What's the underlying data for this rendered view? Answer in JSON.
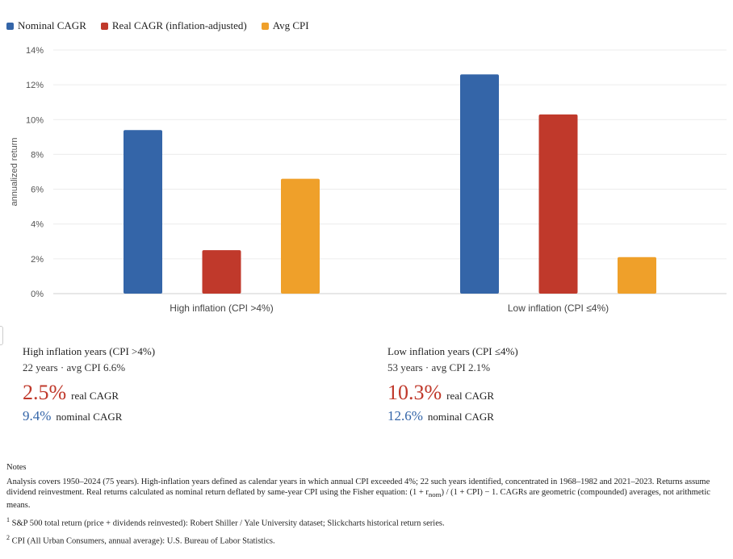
{
  "legend": [
    {
      "label": "Nominal CAGR",
      "color": "#3465a8"
    },
    {
      "label": "Real CAGR (inflation-adjusted)",
      "color": "#c0392b"
    },
    {
      "label": "Avg CPI",
      "color": "#efa02a"
    }
  ],
  "chart_data": {
    "type": "bar",
    "categories": [
      "High inflation (CPI >4%)",
      "Low inflation (CPI ≤4%)"
    ],
    "series": [
      {
        "name": "Nominal CAGR",
        "values": [
          9.4,
          12.6
        ],
        "color": "#3465a8"
      },
      {
        "name": "Real CAGR (inflation-adjusted)",
        "values": [
          2.5,
          10.3
        ],
        "color": "#c0392b"
      },
      {
        "name": "Avg CPI",
        "values": [
          6.6,
          2.1
        ],
        "color": "#efa02a"
      }
    ],
    "ylabel": "annualized return",
    "ylim": [
      0,
      14
    ],
    "yticks": [
      "0%",
      "2%",
      "4%",
      "6%",
      "8%",
      "10%",
      "12%",
      "14%"
    ],
    "grid": true,
    "legend_position": "top-left"
  },
  "cards": [
    {
      "title": "High inflation years (CPI >4%)",
      "sub": "22 years · avg CPI 6.6%",
      "real": "2.5%",
      "real_label": "real CAGR",
      "nominal": "9.4%",
      "nominal_label": "nominal CAGR"
    },
    {
      "title": "Low inflation years (CPI ≤4%)",
      "sub": "53 years · avg CPI 2.1%",
      "real": "10.3%",
      "real_label": "real CAGR",
      "nominal": "12.6%",
      "nominal_label": "nominal CAGR"
    }
  ],
  "notes": {
    "heading": "Notes",
    "body_before": "Analysis covers 1950–2024 (75 years). High-inflation years defined as calendar years in which annual CPI exceeded 4%; 22 such years identified, concentrated in 1968–1982 and 2021–2023. Returns assume dividend reinvestment. Real returns calculated as nominal return deflated by same-year CPI using the Fisher equation: (1 + r",
    "body_sub": "nom",
    "body_after": ") / (1 + CPI) − 1. CAGRs are geometric (compounded) averages, not arithmetic means.",
    "footnotes": [
      {
        "mark": "1",
        "text": "S&P 500 total return (price + dividends reinvested): Robert Shiller / Yale University dataset; Slickcharts historical return series."
      },
      {
        "mark": "2",
        "text": "CPI (All Urban Consumers, annual average): U.S. Bureau of Labor Statistics."
      }
    ]
  }
}
